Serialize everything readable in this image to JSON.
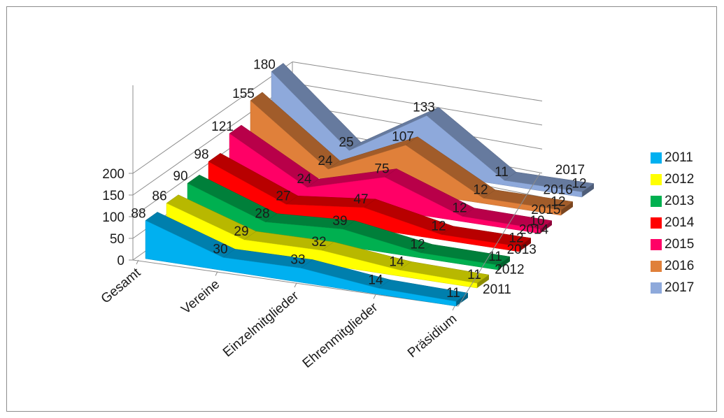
{
  "chart_data": {
    "type": "area",
    "variant": "3d",
    "categories": [
      "Gesamt",
      "Vereine",
      "Einzelmitglieder",
      "Ehrenmitglieder",
      "Präsidium"
    ],
    "series": [
      {
        "name": "2011",
        "values": [
          88,
          30,
          33,
          14,
          11
        ],
        "color": "#00b0f0"
      },
      {
        "name": "2012",
        "values": [
          86,
          29,
          32,
          14,
          11
        ],
        "color": "#ffff00"
      },
      {
        "name": "2013",
        "values": [
          90,
          28,
          39,
          12,
          11
        ],
        "color": "#00b050"
      },
      {
        "name": "2014",
        "values": [
          98,
          27,
          47,
          12,
          12
        ],
        "color": "#ff0000"
      },
      {
        "name": "2015",
        "values": [
          121,
          24,
          75,
          12,
          10
        ],
        "color": "#ff0066"
      },
      {
        "name": "2016",
        "values": [
          155,
          24,
          107,
          12,
          12
        ],
        "color": "#e0803a"
      },
      {
        "name": "2017",
        "values": [
          180,
          25,
          133,
          11,
          12
        ],
        "color": "#8ea9db"
      }
    ],
    "ylim": [
      0,
      200
    ],
    "yticks": [
      0,
      50,
      100,
      150,
      200
    ],
    "legend_position": "right",
    "grid": true
  }
}
